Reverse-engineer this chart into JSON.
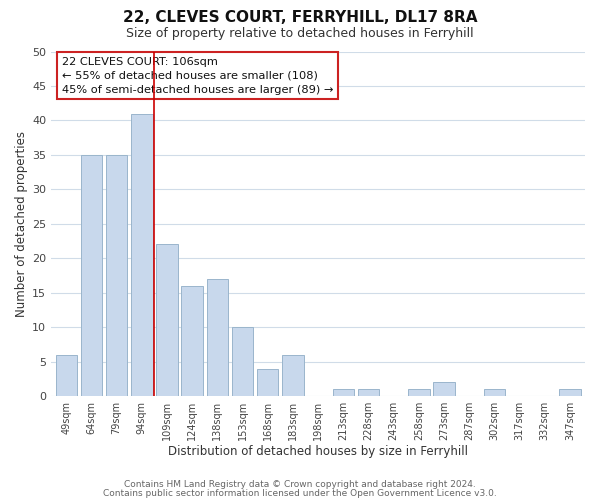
{
  "title": "22, CLEVES COURT, FERRYHILL, DL17 8RA",
  "subtitle": "Size of property relative to detached houses in Ferryhill",
  "xlabel": "Distribution of detached houses by size in Ferryhill",
  "ylabel": "Number of detached properties",
  "bar_color": "#c8d8ec",
  "bar_edge_color": "#9ab5cc",
  "categories": [
    "49sqm",
    "64sqm",
    "79sqm",
    "94sqm",
    "109sqm",
    "124sqm",
    "138sqm",
    "153sqm",
    "168sqm",
    "183sqm",
    "198sqm",
    "213sqm",
    "228sqm",
    "243sqm",
    "258sqm",
    "273sqm",
    "287sqm",
    "302sqm",
    "317sqm",
    "332sqm",
    "347sqm"
  ],
  "values": [
    6,
    35,
    35,
    41,
    22,
    16,
    17,
    10,
    4,
    6,
    0,
    1,
    1,
    0,
    1,
    2,
    0,
    1,
    0,
    0,
    1
  ],
  "ylim": [
    0,
    50
  ],
  "yticks": [
    0,
    5,
    10,
    15,
    20,
    25,
    30,
    35,
    40,
    45,
    50
  ],
  "property_line_color": "#cc0000",
  "annotation_title": "22 CLEVES COURT: 106sqm",
  "annotation_line1": "← 55% of detached houses are smaller (108)",
  "annotation_line2": "45% of semi-detached houses are larger (89) →",
  "annotation_box_facecolor": "#ffffff",
  "annotation_box_edgecolor": "#cc2222",
  "footer_line1": "Contains HM Land Registry data © Crown copyright and database right 2024.",
  "footer_line2": "Contains public sector information licensed under the Open Government Licence v3.0.",
  "grid_color": "#d0dce8",
  "background_color": "#ffffff",
  "title_fontsize": 11,
  "subtitle_fontsize": 9
}
